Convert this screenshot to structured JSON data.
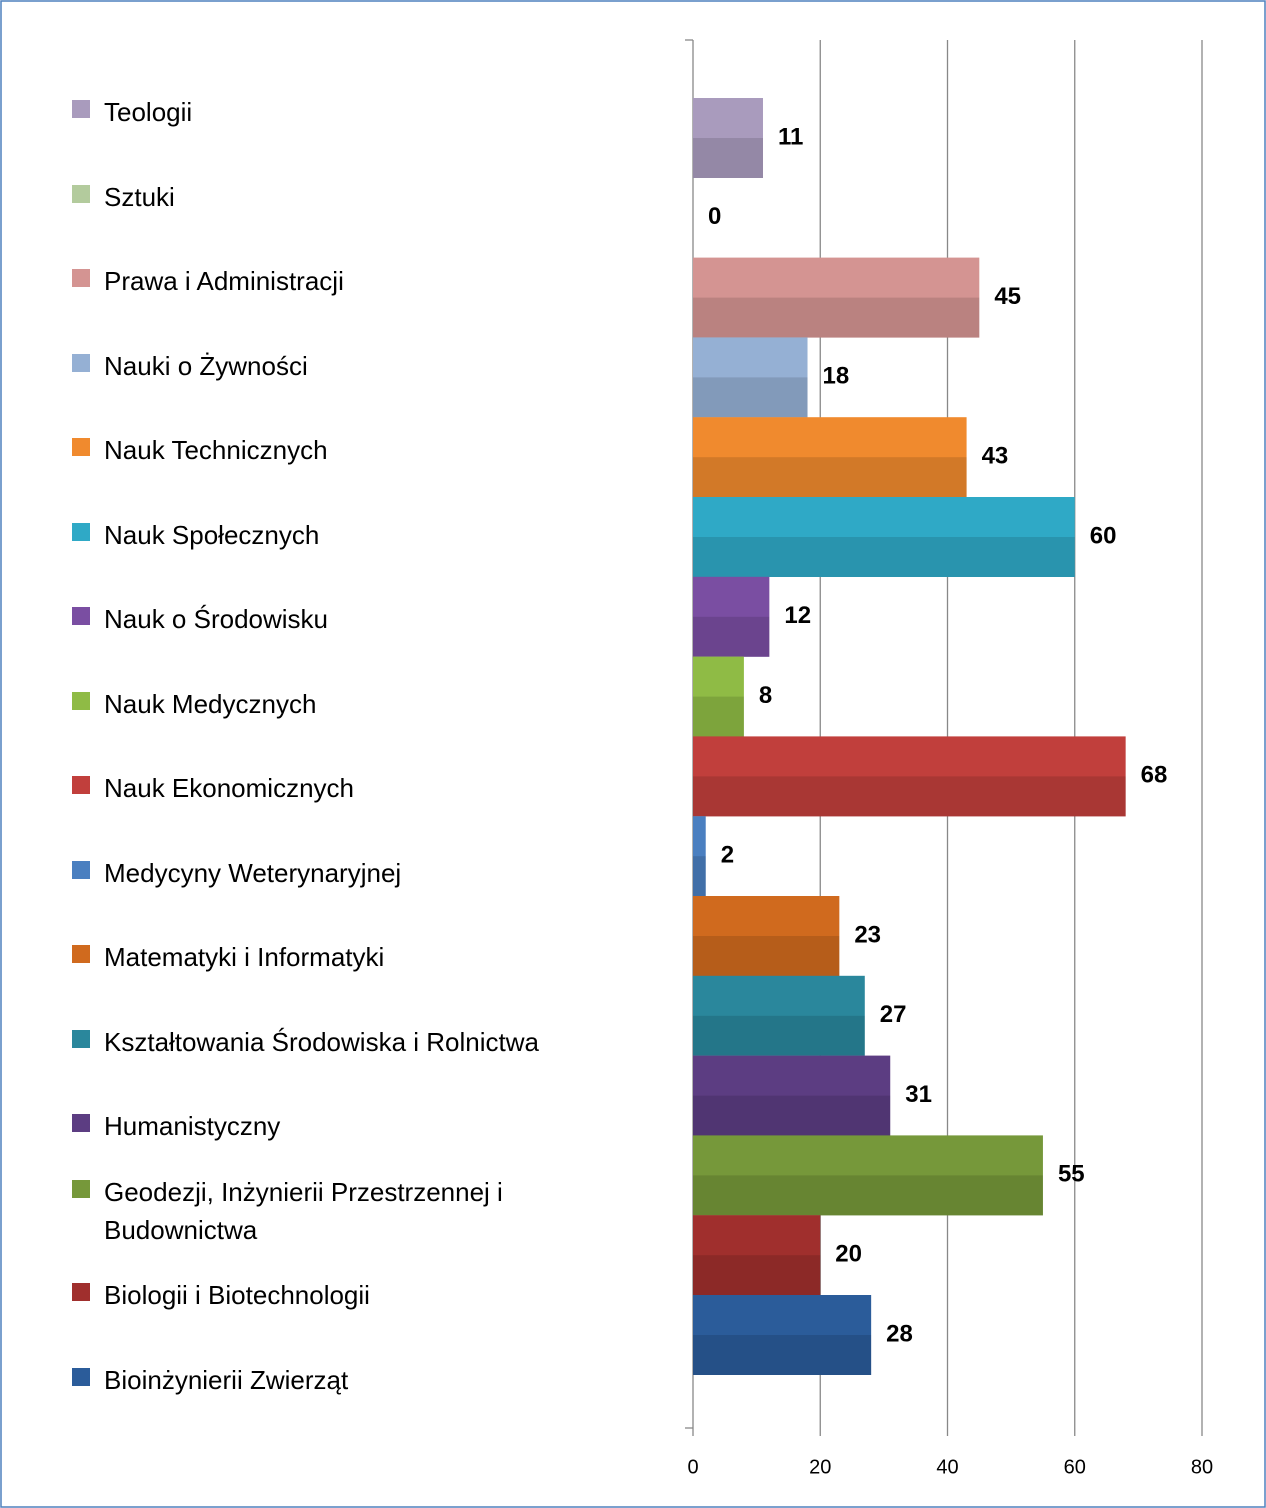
{
  "chart_data": {
    "type": "bar",
    "orientation": "horizontal",
    "series": [
      {
        "name": "Teologii",
        "color": "#a99bbd",
        "values": [
          11
        ]
      },
      {
        "name": "Sztuki",
        "color": "#b3cb9d",
        "values": [
          0
        ]
      },
      {
        "name": "Prawa i Administracji",
        "color": "#d49492",
        "values": [
          45
        ]
      },
      {
        "name": "Nauki o Żywności",
        "color": "#95b0d4",
        "values": [
          18
        ]
      },
      {
        "name": "Nauk Technicznych",
        "color": "#f08a2e",
        "values": [
          43
        ]
      },
      {
        "name": "Nauk Społecznych",
        "color": "#2fa9c6",
        "values": [
          60
        ]
      },
      {
        "name": "Nauk o Środowisku",
        "color": "#7a4ea2",
        "values": [
          12
        ]
      },
      {
        "name": "Nauk Medycznych",
        "color": "#8fbb45",
        "values": [
          8
        ]
      },
      {
        "name": "Nauk Ekonomicznych",
        "color": "#c13f3c",
        "values": [
          68
        ]
      },
      {
        "name": "Medycyny Weterynaryjnej",
        "color": "#4a7fc0",
        "values": [
          2
        ]
      },
      {
        "name": "Matematyki i Informatyki",
        "color": "#d06a1e",
        "values": [
          23
        ]
      },
      {
        "name": "Kształtowania Środowiska i Rolnictwa",
        "color": "#2a879c",
        "values": [
          27
        ]
      },
      {
        "name": "Humanistyczny",
        "color": "#5c3d82",
        "values": [
          31
        ]
      },
      {
        "name": "Geodezji, Inżynierii Przestrzennej i Budownictwa",
        "color": "#76983a",
        "values": [
          55
        ]
      },
      {
        "name": "Biologii i Biotechnologii",
        "color": "#a02f2d",
        "values": [
          20
        ]
      },
      {
        "name": "Bioinżynierii Zwierząt",
        "color": "#2b5c9a",
        "values": [
          28
        ]
      }
    ],
    "xlim": [
      0,
      80
    ],
    "xticks": [
      0,
      20,
      40,
      60,
      80
    ],
    "grid": true,
    "legend": "left"
  }
}
